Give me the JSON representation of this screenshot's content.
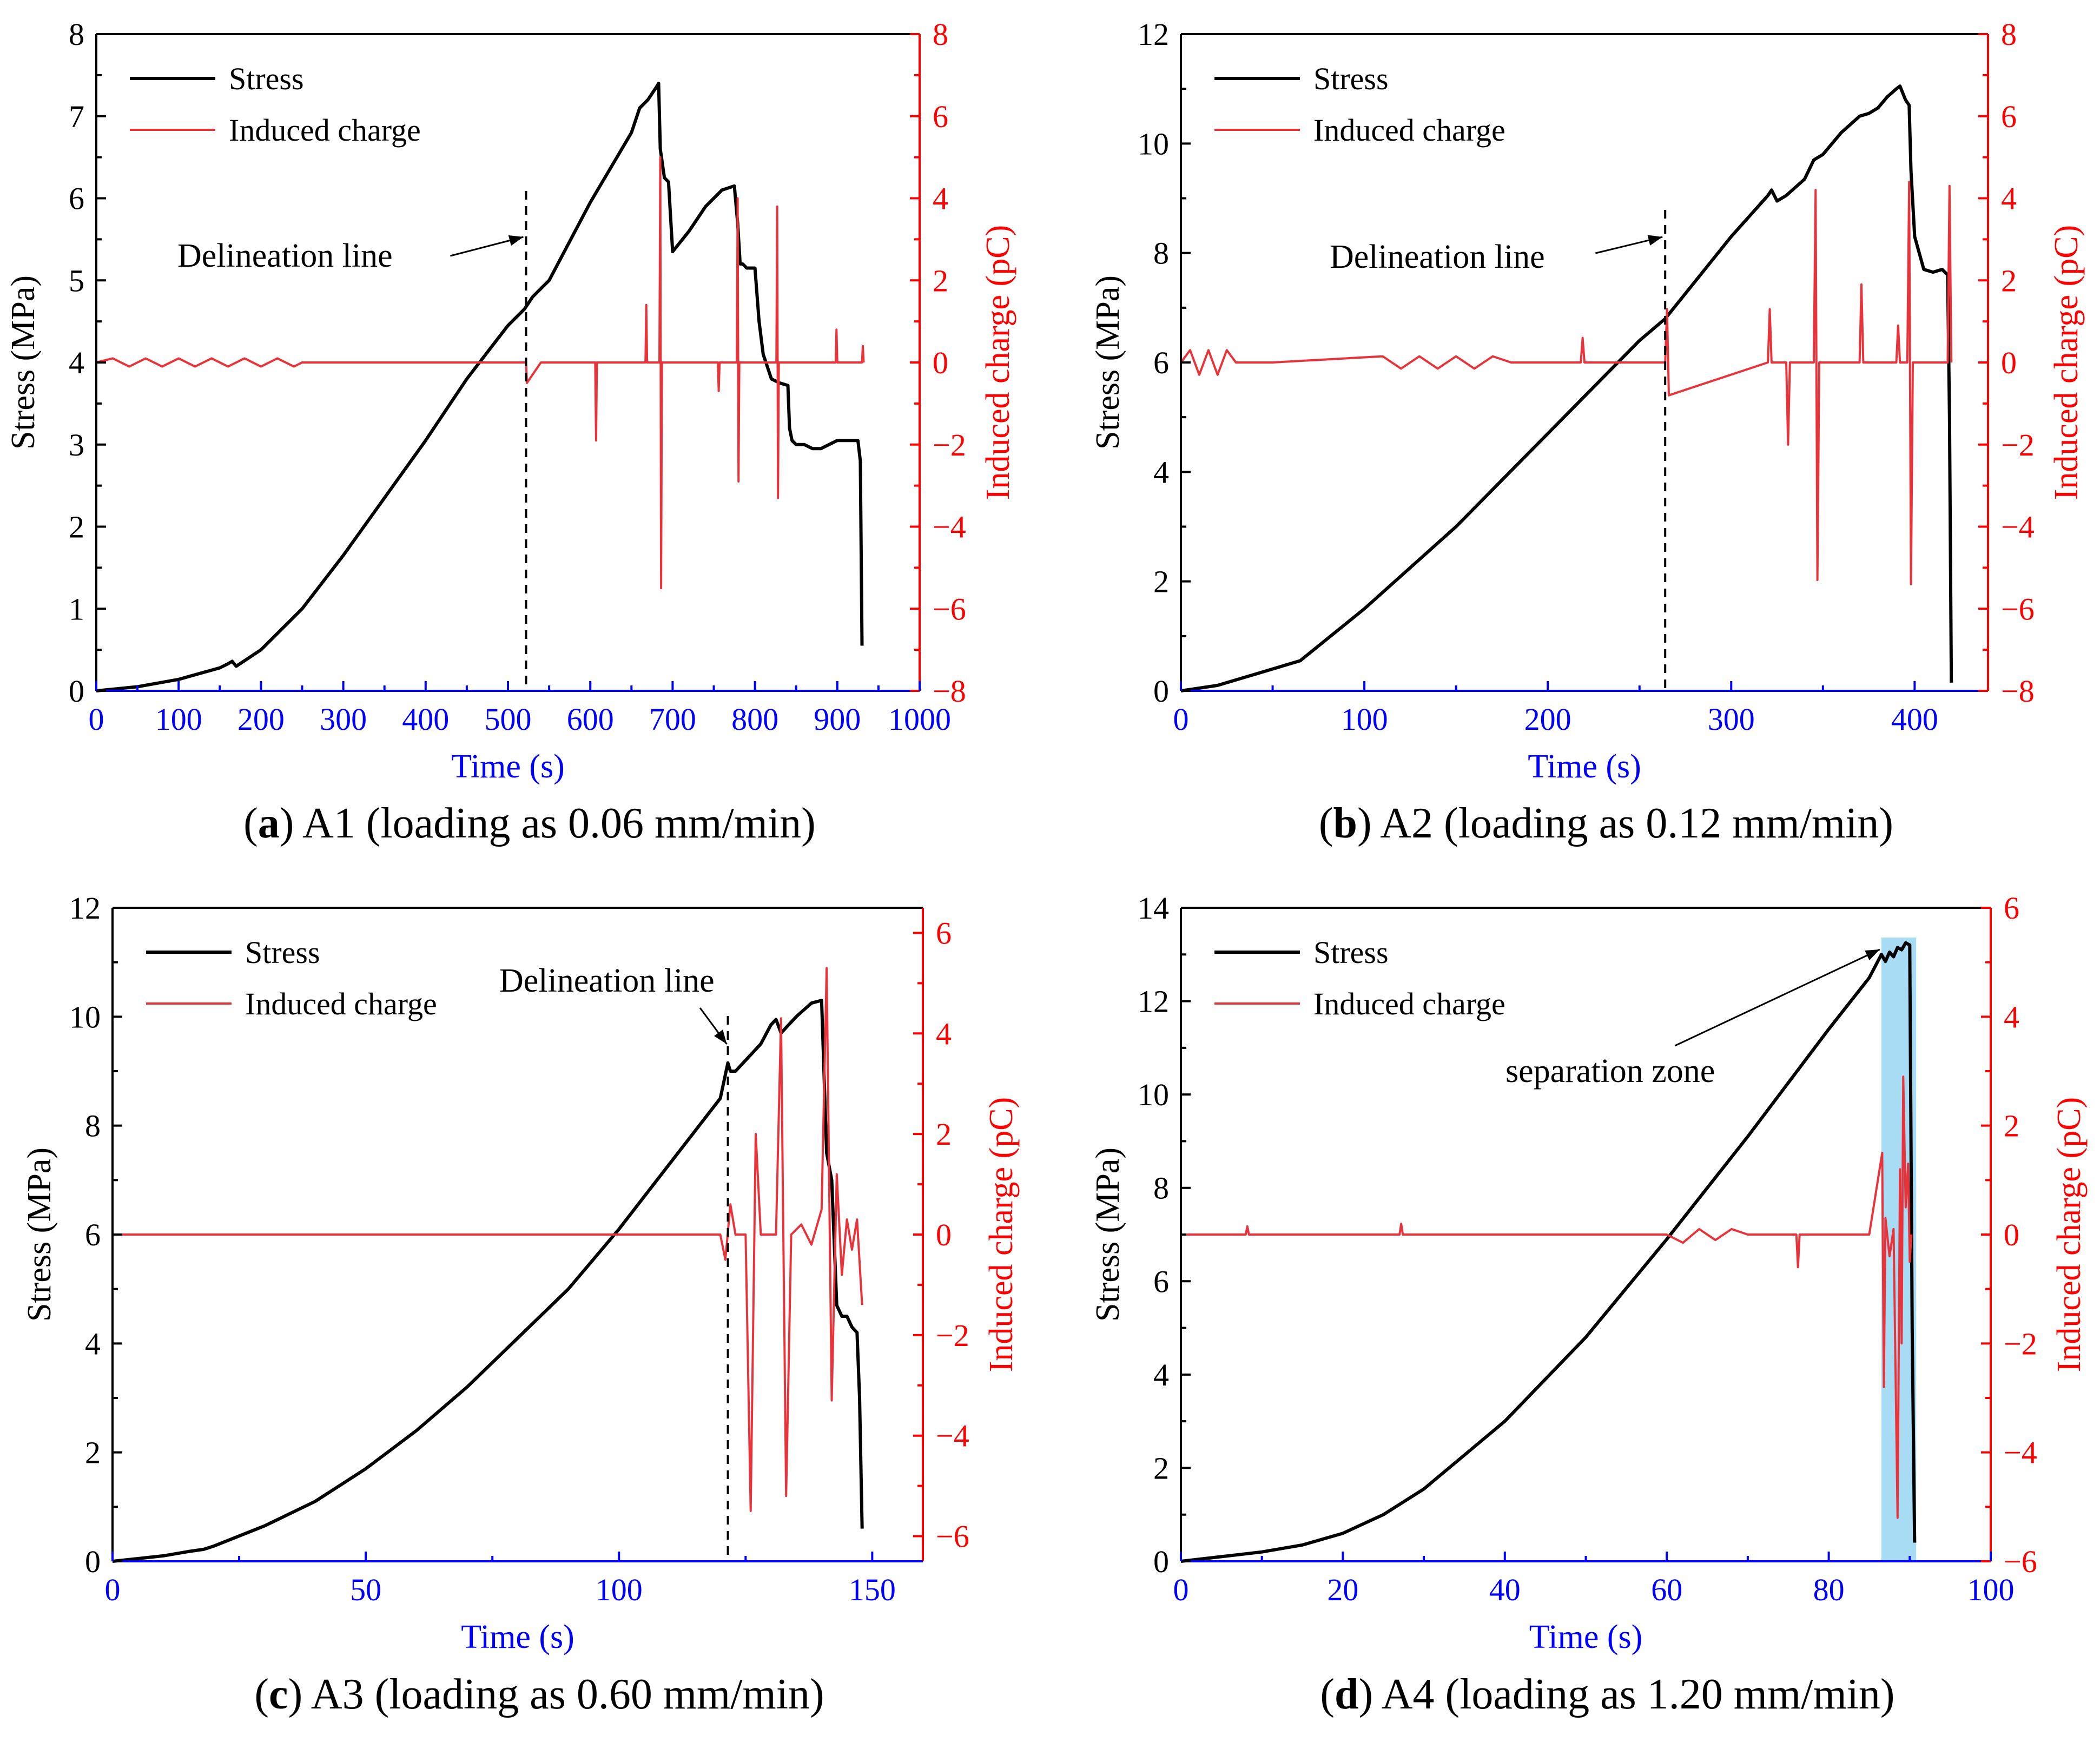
{
  "chart_data": [
    {
      "type": "line",
      "caption_letter": "a",
      "caption": "A1 (loading as 0.06 mm/min)",
      "xlabel": "Time (s)",
      "ylabel": "Stress (MPa)",
      "y2label": "Induced charge (pC)",
      "xlim": [
        0,
        1000
      ],
      "xticks": [
        0,
        100,
        200,
        300,
        400,
        500,
        600,
        700,
        800,
        900,
        1000
      ],
      "ylim": [
        0,
        8
      ],
      "yticks": [
        0,
        1,
        2,
        3,
        4,
        5,
        6,
        7,
        8
      ],
      "y2lim": [
        -8,
        8
      ],
      "y2ticks": [
        -8,
        -6,
        -4,
        -2,
        0,
        2,
        4,
        6,
        8
      ],
      "legend": [
        "Stress",
        "Induced charge"
      ],
      "legend_position": "top-left",
      "annotation": {
        "text": "Delineation line",
        "x": 522
      },
      "series": [
        {
          "name": "Stress",
          "axis": "left",
          "x": [
            0,
            50,
            100,
            150,
            160,
            165,
            170,
            200,
            250,
            300,
            350,
            400,
            450,
            500,
            520,
            530,
            540,
            550,
            600,
            650,
            660,
            670,
            680,
            683,
            685,
            690,
            695,
            700,
            720,
            740,
            760,
            775,
            779,
            782,
            785,
            790,
            800,
            805,
            810,
            815,
            820,
            830,
            840,
            842,
            845,
            850,
            860,
            870,
            880,
            900,
            920,
            925,
            928,
            930
          ],
          "y": [
            0,
            0.05,
            0.14,
            0.28,
            0.33,
            0.36,
            0.3,
            0.5,
            1.0,
            1.65,
            2.35,
            3.05,
            3.8,
            4.45,
            4.65,
            4.8,
            4.9,
            5.0,
            5.95,
            6.8,
            7.1,
            7.2,
            7.35,
            7.4,
            6.6,
            6.25,
            6.2,
            5.35,
            5.6,
            5.9,
            6.1,
            6.15,
            5.7,
            5.2,
            5.2,
            5.15,
            5.15,
            4.5,
            4.1,
            3.95,
            3.8,
            3.75,
            3.72,
            3.2,
            3.05,
            3.0,
            3.0,
            2.95,
            2.95,
            3.05,
            3.05,
            3.05,
            2.8,
            0.55
          ]
        },
        {
          "name": "Induced charge",
          "axis": "right",
          "x": [
            0,
            20,
            40,
            60,
            80,
            100,
            120,
            140,
            160,
            180,
            200,
            220,
            240,
            250,
            300,
            400,
            500,
            522,
            523,
            540,
            606,
            607,
            608,
            620,
            640,
            667,
            668,
            669,
            684,
            685,
            686,
            687,
            688,
            700,
            750,
            755,
            756,
            757,
            778,
            779,
            780,
            781,
            826,
            827,
            828,
            829,
            850,
            898,
            899,
            900,
            930,
            931,
            932
          ],
          "y": [
            0,
            0.1,
            -0.1,
            0.1,
            -0.1,
            0.1,
            -0.1,
            0.1,
            -0.1,
            0.1,
            -0.1,
            0.1,
            -0.1,
            0,
            0,
            0,
            0,
            0,
            -0.5,
            0,
            0,
            -1.9,
            0,
            0,
            0,
            0,
            1.4,
            0,
            0,
            5.0,
            -5.5,
            0,
            0,
            0,
            0,
            0,
            -0.7,
            0,
            0,
            4.0,
            -2.9,
            0,
            0,
            3.8,
            -3.3,
            0,
            0,
            0,
            0.8,
            0,
            0,
            0.4,
            0
          ]
        }
      ]
    },
    {
      "type": "line",
      "caption_letter": "b",
      "caption": "A2 (loading as 0.12 mm/min)",
      "xlabel": "Time (s)",
      "ylabel": "Stress (MPa)",
      "y2label": "Induced charge (pC)",
      "xlim": [
        0,
        440
      ],
      "xticks": [
        0,
        100,
        200,
        300,
        400
      ],
      "ylim": [
        0,
        12
      ],
      "yticks": [
        0,
        2,
        4,
        6,
        8,
        10,
        12
      ],
      "y2lim": [
        -8,
        8
      ],
      "y2ticks": [
        -8,
        -6,
        -4,
        -2,
        0,
        2,
        4,
        6,
        8
      ],
      "legend": [
        "Stress",
        "Induced charge"
      ],
      "legend_position": "top-left",
      "annotation": {
        "text": "Delineation line",
        "x": 264
      },
      "series": [
        {
          "name": "Stress",
          "axis": "left",
          "x": [
            0,
            20,
            40,
            55,
            60,
            65,
            100,
            150,
            200,
            250,
            264,
            300,
            320,
            322,
            325,
            330,
            340,
            345,
            350,
            360,
            370,
            375,
            380,
            385,
            390,
            392,
            395,
            397,
            398,
            400,
            405,
            410,
            415,
            418,
            419,
            420
          ],
          "y": [
            0,
            0.1,
            0.3,
            0.45,
            0.5,
            0.55,
            1.5,
            3.0,
            4.7,
            6.4,
            6.8,
            8.3,
            9.05,
            9.15,
            8.95,
            9.05,
            9.35,
            9.7,
            9.8,
            10.2,
            10.5,
            10.55,
            10.65,
            10.85,
            11.0,
            11.05,
            10.8,
            10.7,
            9.5,
            8.3,
            7.7,
            7.65,
            7.7,
            7.6,
            5.0,
            0.15
          ]
        },
        {
          "name": "Induced charge",
          "axis": "right",
          "x": [
            0,
            5,
            10,
            15,
            20,
            25,
            30,
            50,
            110,
            120,
            130,
            140,
            150,
            160,
            170,
            180,
            218,
            219,
            220,
            264,
            265,
            266,
            320,
            321,
            322,
            330,
            331,
            332,
            345,
            346,
            347,
            348,
            370,
            371,
            372,
            390,
            391,
            392,
            396,
            397,
            398,
            399,
            410,
            418,
            419,
            420
          ],
          "y": [
            0,
            0.3,
            -0.3,
            0.3,
            -0.3,
            0.3,
            0,
            0,
            0.15,
            -0.15,
            0.15,
            -0.15,
            0.15,
            -0.15,
            0.15,
            0,
            0,
            0.6,
            0,
            0,
            1.3,
            -0.8,
            0,
            1.3,
            0,
            0,
            -2.0,
            0,
            0,
            4.2,
            -5.3,
            0,
            0,
            1.9,
            0,
            0,
            0.9,
            0,
            0,
            4.4,
            -5.4,
            0,
            0,
            0,
            4.3,
            0
          ]
        }
      ]
    },
    {
      "type": "line",
      "caption_letter": "c",
      "caption": "A3 (loading as 0.60 mm/min)",
      "xlabel": "Time (s)",
      "ylabel": "Stress (MPa)",
      "y2label": "Induced charge (pC)",
      "xlim": [
        0,
        160
      ],
      "xticks": [
        0,
        50,
        100,
        150
      ],
      "ylim": [
        0,
        12
      ],
      "yticks": [
        0,
        2,
        4,
        6,
        8,
        10,
        12
      ],
      "y2lim": [
        -6.5,
        6.5
      ],
      "y2ticks": [
        -6,
        -4,
        -2,
        0,
        2,
        4,
        6
      ],
      "legend": [
        "Stress",
        "Induced charge"
      ],
      "legend_position": "top-left",
      "annotation": {
        "text": "Delineation line",
        "x": 121.5
      },
      "series": [
        {
          "name": "Stress",
          "axis": "left",
          "x": [
            0,
            5,
            10,
            15,
            18,
            20,
            30,
            40,
            50,
            60,
            70,
            80,
            90,
            100,
            110,
            120,
            121.5,
            122,
            123,
            125,
            128,
            130,
            131,
            132,
            135,
            138,
            140,
            141,
            142,
            143,
            144,
            145,
            146,
            147,
            147.5,
            148
          ],
          "y": [
            0,
            0.05,
            0.1,
            0.18,
            0.22,
            0.28,
            0.65,
            1.1,
            1.7,
            2.4,
            3.2,
            4.1,
            5.0,
            6.1,
            7.3,
            8.5,
            9.15,
            9.0,
            9.0,
            9.2,
            9.5,
            9.85,
            9.95,
            9.7,
            10.0,
            10.25,
            10.3,
            7.5,
            7.0,
            4.7,
            4.5,
            4.5,
            4.3,
            4.2,
            3.0,
            0.6
          ]
        },
        {
          "name": "Induced charge",
          "axis": "right",
          "x": [
            0,
            50,
            100,
            120,
            121,
            122,
            123,
            125,
            126,
            127,
            128,
            131,
            132,
            133,
            134,
            136,
            138,
            140,
            141,
            142,
            143,
            144,
            145,
            146,
            147,
            148
          ],
          "y": [
            0,
            0,
            0,
            0,
            -0.5,
            0.6,
            0,
            0,
            -5.5,
            2.0,
            0,
            0,
            4.3,
            -5.2,
            0,
            0.2,
            -0.2,
            0.5,
            5.3,
            -3.3,
            1.2,
            -0.8,
            0.3,
            -0.3,
            0.3,
            -1.4
          ]
        }
      ]
    },
    {
      "type": "line",
      "caption_letter": "d",
      "caption": "A4 (loading as 1.20 mm/min)",
      "xlabel": "Time (s)",
      "ylabel": "Stress (MPa)",
      "y2label": "Induced charge (pC)",
      "xlim": [
        0,
        100
      ],
      "xticks": [
        0,
        20,
        40,
        60,
        80,
        100
      ],
      "ylim": [
        0,
        14
      ],
      "yticks": [
        0,
        2,
        4,
        6,
        8,
        10,
        12,
        14
      ],
      "y2lim": [
        -6,
        6
      ],
      "y2ticks": [
        -6,
        -4,
        -2,
        0,
        2,
        4,
        6
      ],
      "legend": [
        "Stress",
        "Induced charge"
      ],
      "legend_position": "top-left",
      "annotation": {
        "text": "separation zone",
        "x_range": [
          86.5,
          90.8
        ]
      },
      "series": [
        {
          "name": "Stress",
          "axis": "left",
          "x": [
            0,
            5,
            10,
            15,
            20,
            25,
            30,
            40,
            50,
            60,
            70,
            80,
            85,
            86.5,
            87,
            87.5,
            88,
            88.5,
            89,
            89.5,
            90,
            90.3,
            90.6
          ],
          "y": [
            0,
            0.1,
            0.2,
            0.35,
            0.6,
            1.0,
            1.55,
            3.0,
            4.8,
            6.9,
            9.1,
            11.4,
            12.5,
            13.0,
            12.85,
            13.05,
            12.95,
            13.15,
            13.1,
            13.25,
            13.2,
            5.0,
            0.4
          ]
        },
        {
          "name": "Induced charge",
          "axis": "right",
          "x": [
            0,
            8,
            8.2,
            8.4,
            27,
            27.2,
            27.4,
            60,
            62,
            64,
            66,
            68,
            70,
            72,
            74,
            76,
            76.2,
            76.4,
            85,
            86.6,
            86.8,
            87,
            87.5,
            88,
            88.5,
            88.8,
            89,
            89.2,
            89.5,
            89.8,
            90,
            90.2
          ],
          "y": [
            0,
            0,
            0.15,
            0,
            0,
            0.2,
            0,
            0,
            -0.15,
            0.1,
            -0.1,
            0.1,
            0,
            0,
            0,
            0,
            -0.6,
            0,
            0,
            1.5,
            -2.8,
            0.3,
            -0.4,
            0.1,
            -5.2,
            1.2,
            -2.0,
            2.9,
            0.5,
            1.3,
            -0.5,
            0
          ]
        }
      ]
    }
  ],
  "colors": {
    "stress": "#000000",
    "charge": "#e8333a",
    "time_axis": "#0000ff",
    "charge_axis": "#ff0000",
    "separation_zone": "#a8dcf5"
  }
}
